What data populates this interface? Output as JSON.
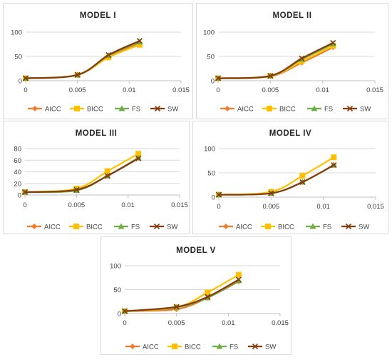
{
  "colors": {
    "AICC": "#ED7D31",
    "BICC": "#FFC000",
    "FS": "#70AD47",
    "SW": "#843C0C",
    "grid": "#d9d9d9",
    "axis": "#bfbfbf"
  },
  "chart_data": [
    {
      "type": "line",
      "title": "MODEL I",
      "x": [
        0,
        0.005,
        0.008,
        0.011
      ],
      "xlim": [
        0,
        0.015
      ],
      "xticks": [
        "0",
        "0.005",
        "0.01",
        "0.015"
      ],
      "ylim": [
        0,
        100
      ],
      "yticks": [
        "0",
        "50",
        "100"
      ],
      "grid": "horizontal",
      "legend": "bottom",
      "series": [
        {
          "name": "AICC",
          "marker": "diamond",
          "values": [
            5,
            12,
            50,
            78
          ]
        },
        {
          "name": "BICC",
          "marker": "square",
          "values": [
            5,
            12,
            48,
            74
          ]
        },
        {
          "name": "FS",
          "marker": "triangle",
          "values": [
            5,
            12,
            52,
            80
          ]
        },
        {
          "name": "SW",
          "marker": "x",
          "values": [
            5,
            12,
            53,
            82
          ]
        }
      ]
    },
    {
      "type": "line",
      "title": "MODEL II",
      "x": [
        0,
        0.005,
        0.008,
        0.011
      ],
      "xlim": [
        0,
        0.015
      ],
      "xticks": [
        "0",
        "0.005",
        "0.01",
        "0.015"
      ],
      "ylim": [
        0,
        100
      ],
      "yticks": [
        "0",
        "50",
        "100"
      ],
      "grid": "horizontal",
      "legend": "bottom",
      "series": [
        {
          "name": "AICC",
          "marker": "diamond",
          "values": [
            5,
            9,
            37,
            69
          ]
        },
        {
          "name": "BICC",
          "marker": "square",
          "values": [
            5,
            10,
            40,
            72
          ]
        },
        {
          "name": "FS",
          "marker": "triangle",
          "values": [
            5,
            10,
            44,
            76
          ]
        },
        {
          "name": "SW",
          "marker": "x",
          "values": [
            5,
            10,
            46,
            78
          ]
        }
      ]
    },
    {
      "type": "line",
      "title": "MODEL III",
      "x": [
        0,
        0.005,
        0.008,
        0.011
      ],
      "xlim": [
        0,
        0.015
      ],
      "xticks": [
        "0",
        "0.005",
        "0.01",
        "0.015"
      ],
      "ylim": [
        0,
        80
      ],
      "yticks": [
        "0",
        "20",
        "40",
        "60",
        "80"
      ],
      "grid": "horizontal",
      "legend": "bottom",
      "series": [
        {
          "name": "AICC",
          "marker": "diamond",
          "values": [
            5,
            8,
            33,
            64
          ]
        },
        {
          "name": "BICC",
          "marker": "square",
          "values": [
            5,
            11,
            41,
            71
          ]
        },
        {
          "name": "FS",
          "marker": "triangle",
          "values": [
            5,
            8,
            33,
            64
          ]
        },
        {
          "name": "SW",
          "marker": "x",
          "values": [
            5,
            9,
            33,
            63
          ]
        }
      ]
    },
    {
      "type": "line",
      "title": "MODEL IV",
      "x": [
        0,
        0.005,
        0.008,
        0.011
      ],
      "xlim": [
        0,
        0.015
      ],
      "xticks": [
        "0",
        "0.005",
        "0.01",
        "0.015"
      ],
      "ylim": [
        0,
        100
      ],
      "yticks": [
        "0",
        "50",
        "100"
      ],
      "grid": "horizontal",
      "legend": "bottom",
      "series": [
        {
          "name": "AICC",
          "marker": "diamond",
          "values": [
            5,
            8,
            31,
            66
          ]
        },
        {
          "name": "BICC",
          "marker": "square",
          "values": [
            5,
            11,
            44,
            82
          ]
        },
        {
          "name": "FS",
          "marker": "triangle",
          "values": [
            5,
            8,
            31,
            66
          ]
        },
        {
          "name": "SW",
          "marker": "x",
          "values": [
            5,
            8,
            31,
            66
          ]
        }
      ]
    },
    {
      "type": "line",
      "title": "MODEL V",
      "x": [
        0,
        0.005,
        0.008,
        0.011
      ],
      "xlim": [
        0,
        0.015
      ],
      "xticks": [
        "0",
        "0.005",
        "0.01",
        "0.015"
      ],
      "ylim": [
        0,
        100
      ],
      "yticks": [
        "0",
        "50",
        "100"
      ],
      "grid": "horizontal",
      "legend": "bottom",
      "series": [
        {
          "name": "AICC",
          "marker": "diamond",
          "values": [
            5,
            9,
            33,
            67
          ]
        },
        {
          "name": "BICC",
          "marker": "square",
          "values": [
            5,
            13,
            44,
            81
          ]
        },
        {
          "name": "FS",
          "marker": "triangle",
          "values": [
            5,
            13,
            33,
            69
          ]
        },
        {
          "name": "SW",
          "marker": "x",
          "values": [
            5,
            14,
            35,
            71
          ]
        }
      ]
    }
  ]
}
